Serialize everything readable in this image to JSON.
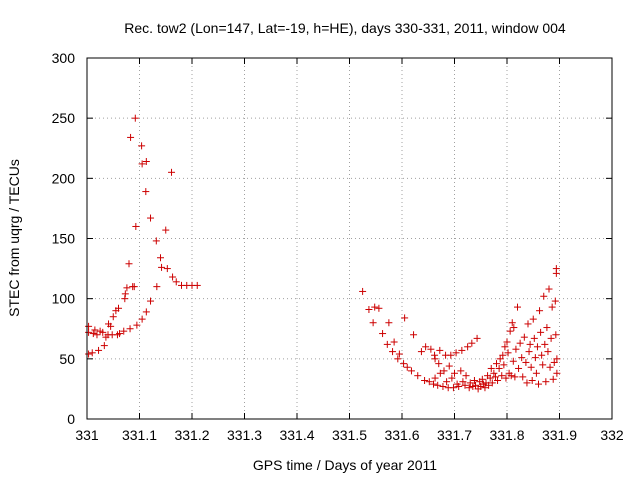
{
  "chart_data": {
    "type": "scatter",
    "title": "Rec. tow2 (Lon=147, Lat=-19, h=HE), days 330-331, 2011, window 004",
    "xlabel": "GPS time / Days of year 2011",
    "ylabel": "STEC from uqrg / TECUs",
    "xlim": [
      331.0,
      332.0
    ],
    "ylim": [
      0,
      300
    ],
    "xticks": [
      331,
      331.1,
      331.2,
      331.3,
      331.4,
      331.5,
      331.6,
      331.7,
      331.8,
      331.9,
      332
    ],
    "xtick_labels": [
      "331",
      "331.1",
      "331.2",
      "331.3",
      "331.4",
      "331.5",
      "331.6",
      "331.7",
      "331.8",
      "331.9",
      "332"
    ],
    "yticks": [
      0,
      50,
      100,
      150,
      200,
      250,
      300
    ],
    "ytick_labels": [
      "0",
      "50",
      "100",
      "150",
      "200",
      "250",
      "300"
    ],
    "grid": true,
    "marker": "+",
    "color": "#cc0000",
    "series": [
      {
        "name": "STEC",
        "points": [
          [
            331.003,
            77
          ],
          [
            331.003,
            72
          ],
          [
            331.003,
            54
          ],
          [
            331.01,
            55
          ],
          [
            331.012,
            71
          ],
          [
            331.015,
            74
          ],
          [
            331.019,
            70
          ],
          [
            331.022,
            57
          ],
          [
            331.025,
            73
          ],
          [
            331.03,
            72
          ],
          [
            331.033,
            61
          ],
          [
            331.036,
            68
          ],
          [
            331.04,
            70
          ],
          [
            331.041,
            79
          ],
          [
            331.045,
            77
          ],
          [
            331.048,
            70
          ],
          [
            331.05,
            85
          ],
          [
            331.055,
            90
          ],
          [
            331.058,
            70
          ],
          [
            331.062,
            71
          ],
          [
            331.06,
            92
          ],
          [
            331.07,
            73
          ],
          [
            331.072,
            100
          ],
          [
            331.073,
            104
          ],
          [
            331.076,
            109
          ],
          [
            331.08,
            129
          ],
          [
            331.082,
            75
          ],
          [
            331.083,
            234
          ],
          [
            331.087,
            110
          ],
          [
            331.09,
            110
          ],
          [
            331.092,
            250
          ],
          [
            331.093,
            160
          ],
          [
            331.095,
            78
          ],
          [
            331.105,
            212
          ],
          [
            331.104,
            227
          ],
          [
            331.105,
            83
          ],
          [
            331.113,
            214
          ],
          [
            331.112,
            189
          ],
          [
            331.113,
            89
          ],
          [
            331.121,
            167
          ],
          [
            331.121,
            98
          ],
          [
            331.132,
            148
          ],
          [
            331.133,
            110
          ],
          [
            331.14,
            134
          ],
          [
            331.142,
            126
          ],
          [
            331.15,
            157
          ],
          [
            331.153,
            125
          ],
          [
            331.161,
            205
          ],
          [
            331.163,
            118
          ],
          [
            331.17,
            114
          ],
          [
            331.18,
            111
          ],
          [
            331.19,
            111
          ],
          [
            331.2,
            111
          ],
          [
            331.21,
            111
          ],
          [
            331.525,
            106
          ],
          [
            331.537,
            91
          ],
          [
            331.545,
            80
          ],
          [
            331.548,
            93
          ],
          [
            331.556,
            92
          ],
          [
            331.563,
            71
          ],
          [
            331.572,
            62
          ],
          [
            331.575,
            80
          ],
          [
            331.582,
            56
          ],
          [
            331.585,
            64
          ],
          [
            331.592,
            50
          ],
          [
            331.595,
            54
          ],
          [
            331.603,
            46
          ],
          [
            331.605,
            84
          ],
          [
            331.61,
            43
          ],
          [
            331.618,
            40
          ],
          [
            331.622,
            70
          ],
          [
            331.63,
            36
          ],
          [
            331.637,
            56
          ],
          [
            331.643,
            32
          ],
          [
            331.645,
            60
          ],
          [
            331.652,
            31
          ],
          [
            331.655,
            58
          ],
          [
            331.66,
            29
          ],
          [
            331.662,
            53
          ],
          [
            331.663,
            50
          ],
          [
            331.663,
            34
          ],
          [
            331.668,
            28
          ],
          [
            331.67,
            46
          ],
          [
            331.672,
            57
          ],
          [
            331.673,
            38
          ],
          [
            331.678,
            27
          ],
          [
            331.68,
            40
          ],
          [
            331.683,
            53
          ],
          [
            331.685,
            31
          ],
          [
            331.688,
            26
          ],
          [
            331.69,
            44
          ],
          [
            331.693,
            53
          ],
          [
            331.695,
            34
          ],
          [
            331.698,
            26
          ],
          [
            331.7,
            38
          ],
          [
            331.703,
            55
          ],
          [
            331.705,
            29
          ],
          [
            331.708,
            27
          ],
          [
            331.712,
            40
          ],
          [
            331.714,
            57
          ],
          [
            331.716,
            31
          ],
          [
            331.72,
            28
          ],
          [
            331.722,
            36
          ],
          [
            331.725,
            60
          ],
          [
            331.728,
            26
          ],
          [
            331.73,
            30
          ],
          [
            331.733,
            63
          ],
          [
            331.735,
            27
          ],
          [
            331.738,
            32
          ],
          [
            331.74,
            28
          ],
          [
            331.743,
            67
          ],
          [
            331.745,
            25
          ],
          [
            331.748,
            31
          ],
          [
            331.75,
            27
          ],
          [
            331.753,
            33
          ],
          [
            331.755,
            29
          ],
          [
            331.758,
            26
          ],
          [
            331.76,
            30
          ],
          [
            331.763,
            36
          ],
          [
            331.765,
            28
          ],
          [
            331.768,
            34
          ],
          [
            331.77,
            42
          ],
          [
            331.772,
            30
          ],
          [
            331.775,
            38
          ],
          [
            331.778,
            35
          ],
          [
            331.78,
            46
          ],
          [
            331.782,
            32
          ],
          [
            331.785,
            42
          ],
          [
            331.787,
            50
          ],
          [
            331.79,
            36
          ],
          [
            331.792,
            53
          ],
          [
            331.794,
            45
          ],
          [
            331.796,
            60
          ],
          [
            331.798,
            34
          ],
          [
            331.8,
            64
          ],
          [
            331.802,
            55
          ],
          [
            331.804,
            38
          ],
          [
            331.806,
            73
          ],
          [
            331.808,
            36
          ],
          [
            331.81,
            80
          ],
          [
            331.812,
            48
          ],
          [
            331.813,
            76
          ],
          [
            331.815,
            35
          ],
          [
            331.817,
            58
          ],
          [
            331.82,
            93
          ],
          [
            331.822,
            42
          ],
          [
            331.825,
            63
          ],
          [
            331.828,
            51
          ],
          [
            331.83,
            35
          ],
          [
            331.833,
            68
          ],
          [
            331.836,
            47
          ],
          [
            331.838,
            30
          ],
          [
            331.84,
            79
          ],
          [
            331.842,
            56
          ],
          [
            331.844,
            62
          ],
          [
            331.846,
            43
          ],
          [
            331.848,
            32
          ],
          [
            331.85,
            83
          ],
          [
            331.852,
            67
          ],
          [
            331.854,
            51
          ],
          [
            331.856,
            38
          ],
          [
            331.858,
            60
          ],
          [
            331.86,
            29
          ],
          [
            331.862,
            90
          ],
          [
            331.864,
            72
          ],
          [
            331.866,
            53
          ],
          [
            331.868,
            45
          ],
          [
            331.87,
            102
          ],
          [
            331.872,
            62
          ],
          [
            331.874,
            31
          ],
          [
            331.876,
            76
          ],
          [
            331.878,
            56
          ],
          [
            331.88,
            108
          ],
          [
            331.882,
            43
          ],
          [
            331.884,
            67
          ],
          [
            331.886,
            93
          ],
          [
            331.888,
            33
          ],
          [
            331.89,
            47
          ],
          [
            331.892,
            98
          ],
          [
            331.893,
            70
          ],
          [
            331.894,
            121
          ],
          [
            331.894,
            125
          ],
          [
            331.895,
            50
          ],
          [
            331.895,
            38
          ]
        ]
      }
    ]
  }
}
